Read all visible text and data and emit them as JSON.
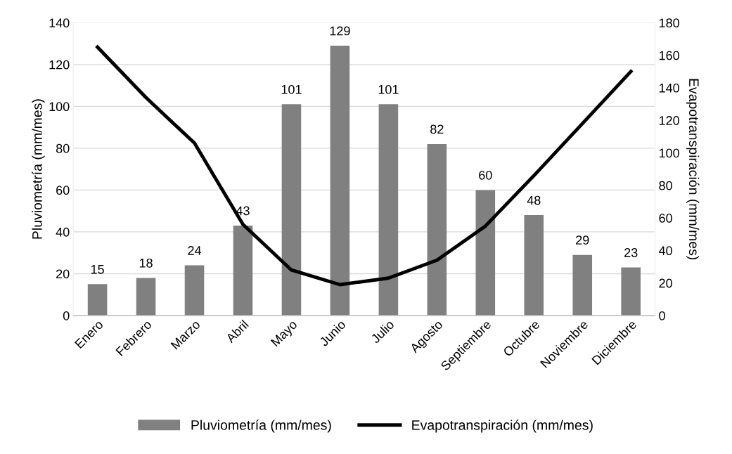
{
  "chart_data": {
    "type": "bar",
    "categories": [
      "Enero",
      "Febrero",
      "Marzo",
      "Abril",
      "Mayo",
      "Junio",
      "Julio",
      "Agosto",
      "Septiembre",
      "Octubre",
      "Noviembre",
      "Diciembre"
    ],
    "series": [
      {
        "name": "Pluviometría (mm/mes)",
        "color": "#808080",
        "values": [
          15,
          18,
          24,
          43,
          101,
          129,
          101,
          82,
          60,
          48,
          29,
          23
        ],
        "value_labels": [
          "15",
          "18",
          "24",
          "43",
          "101",
          "129",
          "101",
          "82",
          "60",
          "48",
          "29",
          "23"
        ]
      },
      {
        "name": "Evapotranspiración (mm/mes)",
        "type": "line",
        "axis": "y2",
        "color": "#000000",
        "values": [
          165,
          134,
          106,
          56,
          28,
          19,
          23,
          34,
          55,
          86,
          118,
          150
        ]
      }
    ],
    "ylabel": "Pluviometría (mm/mes)",
    "y2label": "Evapotranspiración (mm/mes)",
    "ylim": [
      0,
      140
    ],
    "yticks": [
      0,
      20,
      40,
      60,
      80,
      100,
      120,
      140
    ],
    "y2lim": [
      0,
      180
    ],
    "y2ticks": [
      0,
      20,
      40,
      60,
      80,
      100,
      120,
      140,
      160,
      180
    ],
    "grid": "y",
    "legend": "bottom",
    "marker": "none",
    "line_style": "solid"
  }
}
